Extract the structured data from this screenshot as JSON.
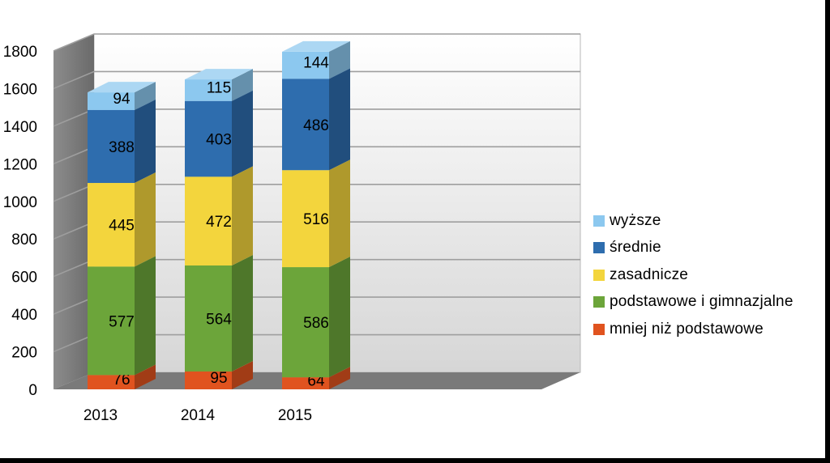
{
  "chart_data": {
    "type": "bar",
    "stacked": true,
    "three_d": true,
    "categories": [
      "2013",
      "2014",
      "2015"
    ],
    "series": [
      {
        "name": "mniej niż podstawowe",
        "color": "#e0531f",
        "values": [
          76,
          95,
          64
        ]
      },
      {
        "name": "podstawowe i gimnazjalne",
        "color": "#6ca53a",
        "values": [
          577,
          564,
          586
        ]
      },
      {
        "name": "zasadnicze",
        "color": "#f3d53d",
        "values": [
          445,
          472,
          516
        ]
      },
      {
        "name": "średnie",
        "color": "#2e6dae",
        "values": [
          388,
          403,
          486
        ]
      },
      {
        "name": "wyższe",
        "color": "#8cc8ef",
        "values": [
          94,
          115,
          144
        ]
      }
    ],
    "yticks": [
      "0",
      "200",
      "400",
      "600",
      "800",
      "1000",
      "1200",
      "1400",
      "1600",
      "1800"
    ],
    "ylim": [
      0,
      1800
    ],
    "grid": true,
    "legend_position": "right",
    "legend_order": [
      "wyższe",
      "średnie",
      "zasadnicze",
      "podstawowe i gimnazjalne",
      "mniej niż podstawowe"
    ]
  }
}
